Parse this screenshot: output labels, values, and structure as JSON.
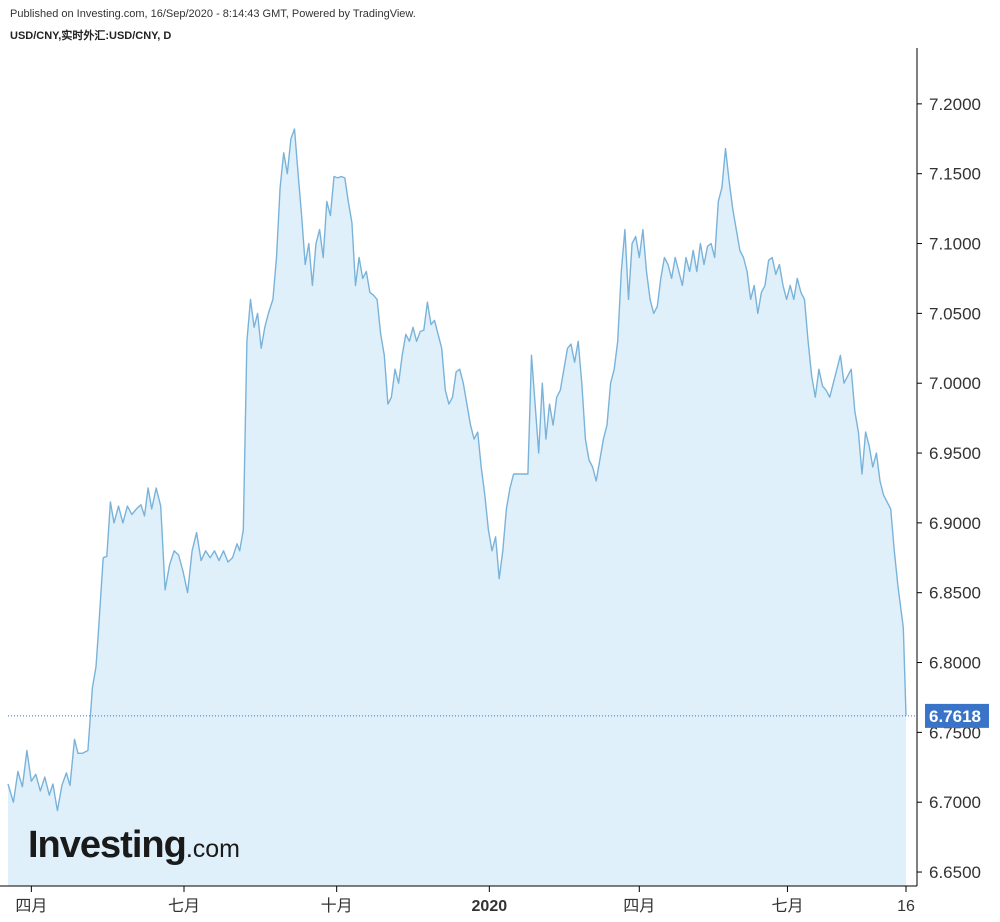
{
  "header": {
    "published": "Published on Investing.com, 16/Sep/2020 - 8:14:43 GMT, Powered by TradingView.",
    "symbol": "USD/CNY,实时外汇:USD/CNY, D"
  },
  "logo": {
    "main": "Investing",
    "sub": ".com"
  },
  "colors": {
    "line": "#7ab3d9",
    "area": "#dff0fb",
    "last_label_bg": "#3a74c9",
    "last_line": "#3a74c9",
    "axis": "#000000"
  },
  "chart_data": {
    "type": "area",
    "title": "",
    "xlabel": "",
    "ylabel": "",
    "last_value": "6.7618",
    "ylim": [
      6.64,
      7.24
    ],
    "y_ticks": [
      "7.2000",
      "7.1500",
      "7.1000",
      "7.0500",
      "7.0000",
      "6.9500",
      "6.9000",
      "6.8500",
      "6.8000",
      "6.7500",
      "6.7000",
      "6.6500"
    ],
    "x_ticks": [
      {
        "label": "四月",
        "t": 0.026
      },
      {
        "label": "七月",
        "t": 0.196
      },
      {
        "label": "十月",
        "t": 0.366
      },
      {
        "label": "2020",
        "t": 0.536,
        "bold": true
      },
      {
        "label": "四月",
        "t": 0.703
      },
      {
        "label": "七月",
        "t": 0.868
      },
      {
        "label": "16",
        "t": 1.0
      }
    ],
    "grid": false,
    "series": [
      {
        "values": [
          [
            0.0,
            6.713
          ],
          [
            0.006,
            6.7
          ],
          [
            0.011,
            6.722
          ],
          [
            0.016,
            6.711
          ],
          [
            0.021,
            6.737
          ],
          [
            0.026,
            6.715
          ],
          [
            0.031,
            6.72
          ],
          [
            0.036,
            6.708
          ],
          [
            0.041,
            6.718
          ],
          [
            0.046,
            6.705
          ],
          [
            0.05,
            6.713
          ],
          [
            0.055,
            6.694
          ],
          [
            0.06,
            6.712
          ],
          [
            0.065,
            6.721
          ],
          [
            0.069,
            6.712
          ],
          [
            0.074,
            6.745
          ],
          [
            0.078,
            6.735
          ],
          [
            0.083,
            6.735
          ],
          [
            0.089,
            6.737
          ],
          [
            0.094,
            6.782
          ],
          [
            0.098,
            6.797
          ],
          [
            0.101,
            6.825
          ],
          [
            0.106,
            6.875
          ],
          [
            0.11,
            6.876
          ],
          [
            0.114,
            6.915
          ],
          [
            0.118,
            6.9
          ],
          [
            0.123,
            6.912
          ],
          [
            0.128,
            6.9
          ],
          [
            0.133,
            6.912
          ],
          [
            0.138,
            6.906
          ],
          [
            0.143,
            6.91
          ],
          [
            0.148,
            6.913
          ],
          [
            0.152,
            6.905
          ],
          [
            0.156,
            6.925
          ],
          [
            0.16,
            6.91
          ],
          [
            0.165,
            6.925
          ],
          [
            0.17,
            6.912
          ],
          [
            0.175,
            6.852
          ],
          [
            0.18,
            6.87
          ],
          [
            0.185,
            6.88
          ],
          [
            0.19,
            6.877
          ],
          [
            0.195,
            6.865
          ],
          [
            0.2,
            6.85
          ],
          [
            0.205,
            6.88
          ],
          [
            0.21,
            6.893
          ],
          [
            0.215,
            6.873
          ],
          [
            0.22,
            6.88
          ],
          [
            0.225,
            6.875
          ],
          [
            0.23,
            6.88
          ],
          [
            0.235,
            6.873
          ],
          [
            0.24,
            6.88
          ],
          [
            0.245,
            6.872
          ],
          [
            0.25,
            6.875
          ],
          [
            0.255,
            6.885
          ],
          [
            0.258,
            6.88
          ],
          [
            0.262,
            6.895
          ],
          [
            0.266,
            7.03
          ],
          [
            0.27,
            7.06
          ],
          [
            0.274,
            7.04
          ],
          [
            0.278,
            7.05
          ],
          [
            0.282,
            7.025
          ],
          [
            0.286,
            7.04
          ],
          [
            0.29,
            7.05
          ],
          [
            0.295,
            7.06
          ],
          [
            0.299,
            7.09
          ],
          [
            0.303,
            7.14
          ],
          [
            0.307,
            7.165
          ],
          [
            0.311,
            7.15
          ],
          [
            0.315,
            7.175
          ],
          [
            0.319,
            7.182
          ],
          [
            0.323,
            7.15
          ],
          [
            0.327,
            7.12
          ],
          [
            0.331,
            7.085
          ],
          [
            0.335,
            7.1
          ],
          [
            0.339,
            7.07
          ],
          [
            0.343,
            7.1
          ],
          [
            0.347,
            7.11
          ],
          [
            0.351,
            7.09
          ],
          [
            0.355,
            7.13
          ],
          [
            0.359,
            7.12
          ],
          [
            0.363,
            7.148
          ],
          [
            0.367,
            7.147
          ],
          [
            0.371,
            7.148
          ],
          [
            0.375,
            7.147
          ],
          [
            0.379,
            7.13
          ],
          [
            0.383,
            7.115
          ],
          [
            0.387,
            7.07
          ],
          [
            0.391,
            7.09
          ],
          [
            0.395,
            7.075
          ],
          [
            0.399,
            7.08
          ],
          [
            0.403,
            7.065
          ],
          [
            0.407,
            7.063
          ],
          [
            0.411,
            7.06
          ],
          [
            0.415,
            7.035
          ],
          [
            0.419,
            7.02
          ],
          [
            0.423,
            6.985
          ],
          [
            0.427,
            6.99
          ],
          [
            0.431,
            7.01
          ],
          [
            0.435,
            7.0
          ],
          [
            0.439,
            7.02
          ],
          [
            0.443,
            7.035
          ],
          [
            0.447,
            7.03
          ],
          [
            0.451,
            7.04
          ],
          [
            0.455,
            7.03
          ],
          [
            0.459,
            7.037
          ],
          [
            0.463,
            7.038
          ],
          [
            0.467,
            7.058
          ],
          [
            0.471,
            7.042
          ],
          [
            0.475,
            7.045
          ],
          [
            0.479,
            7.035
          ],
          [
            0.483,
            7.025
          ],
          [
            0.487,
            6.995
          ],
          [
            0.491,
            6.985
          ],
          [
            0.495,
            6.99
          ],
          [
            0.499,
            7.008
          ],
          [
            0.503,
            7.01
          ],
          [
            0.507,
            7.0
          ],
          [
            0.511,
            6.985
          ],
          [
            0.515,
            6.97
          ],
          [
            0.519,
            6.96
          ],
          [
            0.523,
            6.965
          ],
          [
            0.527,
            6.94
          ],
          [
            0.531,
            6.92
          ],
          [
            0.535,
            6.895
          ],
          [
            0.539,
            6.88
          ],
          [
            0.543,
            6.89
          ],
          [
            0.547,
            6.86
          ],
          [
            0.551,
            6.88
          ],
          [
            0.555,
            6.91
          ],
          [
            0.559,
            6.925
          ],
          [
            0.563,
            6.935
          ],
          [
            0.567,
            6.935
          ],
          [
            0.571,
            6.935
          ],
          [
            0.575,
            6.935
          ],
          [
            0.579,
            6.935
          ],
          [
            0.583,
            7.02
          ],
          [
            0.587,
            6.985
          ],
          [
            0.591,
            6.95
          ],
          [
            0.595,
            7.0
          ],
          [
            0.599,
            6.96
          ],
          [
            0.603,
            6.985
          ],
          [
            0.607,
            6.97
          ],
          [
            0.611,
            6.99
          ],
          [
            0.615,
            6.995
          ],
          [
            0.619,
            7.01
          ],
          [
            0.623,
            7.025
          ],
          [
            0.627,
            7.028
          ],
          [
            0.631,
            7.015
          ],
          [
            0.635,
            7.03
          ],
          [
            0.639,
            7.0
          ],
          [
            0.643,
            6.96
          ],
          [
            0.647,
            6.945
          ],
          [
            0.651,
            6.94
          ],
          [
            0.655,
            6.93
          ],
          [
            0.659,
            6.945
          ],
          [
            0.663,
            6.96
          ],
          [
            0.667,
            6.97
          ],
          [
            0.671,
            7.0
          ],
          [
            0.675,
            7.01
          ],
          [
            0.679,
            7.03
          ],
          [
            0.683,
            7.08
          ],
          [
            0.687,
            7.11
          ],
          [
            0.691,
            7.06
          ],
          [
            0.695,
            7.1
          ],
          [
            0.699,
            7.105
          ],
          [
            0.703,
            7.09
          ],
          [
            0.707,
            7.11
          ],
          [
            0.711,
            7.08
          ],
          [
            0.715,
            7.06
          ],
          [
            0.719,
            7.05
          ],
          [
            0.723,
            7.055
          ],
          [
            0.727,
            7.075
          ],
          [
            0.731,
            7.09
          ],
          [
            0.735,
            7.085
          ],
          [
            0.739,
            7.075
          ],
          [
            0.743,
            7.09
          ],
          [
            0.747,
            7.08
          ],
          [
            0.751,
            7.07
          ],
          [
            0.755,
            7.09
          ],
          [
            0.759,
            7.08
          ],
          [
            0.763,
            7.095
          ],
          [
            0.767,
            7.08
          ],
          [
            0.771,
            7.1
          ],
          [
            0.775,
            7.085
          ],
          [
            0.779,
            7.098
          ],
          [
            0.783,
            7.1
          ],
          [
            0.787,
            7.09
          ],
          [
            0.791,
            7.13
          ],
          [
            0.795,
            7.14
          ],
          [
            0.799,
            7.168
          ],
          [
            0.803,
            7.145
          ],
          [
            0.807,
            7.125
          ],
          [
            0.811,
            7.11
          ],
          [
            0.815,
            7.095
          ],
          [
            0.819,
            7.09
          ],
          [
            0.823,
            7.08
          ],
          [
            0.827,
            7.06
          ],
          [
            0.831,
            7.07
          ],
          [
            0.835,
            7.05
          ],
          [
            0.839,
            7.065
          ],
          [
            0.843,
            7.07
          ],
          [
            0.847,
            7.088
          ],
          [
            0.851,
            7.09
          ],
          [
            0.855,
            7.078
          ],
          [
            0.859,
            7.085
          ],
          [
            0.863,
            7.07
          ],
          [
            0.867,
            7.06
          ],
          [
            0.871,
            7.07
          ],
          [
            0.875,
            7.06
          ],
          [
            0.879,
            7.075
          ],
          [
            0.883,
            7.065
          ],
          [
            0.887,
            7.06
          ],
          [
            0.891,
            7.03
          ],
          [
            0.895,
            7.005
          ],
          [
            0.899,
            6.99
          ],
          [
            0.903,
            7.01
          ],
          [
            0.907,
            6.998
          ],
          [
            0.911,
            6.995
          ],
          [
            0.915,
            6.99
          ],
          [
            0.919,
            7.0
          ],
          [
            0.923,
            7.01
          ],
          [
            0.927,
            7.02
          ],
          [
            0.931,
            7.0
          ],
          [
            0.935,
            7.005
          ],
          [
            0.939,
            7.01
          ],
          [
            0.943,
            6.98
          ],
          [
            0.947,
            6.965
          ],
          [
            0.951,
            6.935
          ],
          [
            0.955,
            6.965
          ],
          [
            0.959,
            6.955
          ],
          [
            0.963,
            6.94
          ],
          [
            0.967,
            6.95
          ],
          [
            0.971,
            6.93
          ],
          [
            0.975,
            6.92
          ],
          [
            0.979,
            6.915
          ],
          [
            0.983,
            6.91
          ],
          [
            0.987,
            6.88
          ],
          [
            0.991,
            6.855
          ],
          [
            0.995,
            6.835
          ],
          [
            0.997,
            6.825
          ],
          [
            1.0,
            6.762
          ]
        ]
      }
    ]
  }
}
